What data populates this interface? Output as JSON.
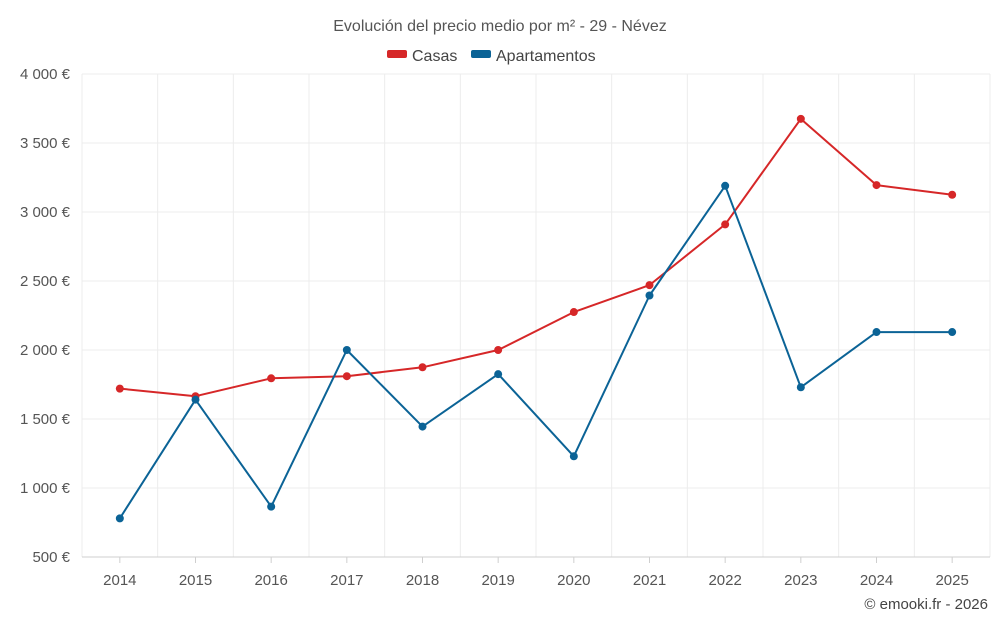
{
  "chart_data": {
    "type": "line",
    "title": "Evolución del precio medio por m² - 29 - Névez",
    "categories": [
      "2014",
      "2015",
      "2016",
      "2017",
      "2018",
      "2019",
      "2020",
      "2021",
      "2022",
      "2023",
      "2024",
      "2025"
    ],
    "series": [
      {
        "name": "Casas",
        "color": "#d62728",
        "values": [
          1720,
          1665,
          1795,
          1810,
          1875,
          2000,
          2275,
          2470,
          2910,
          3675,
          3195,
          3125
        ]
      },
      {
        "name": "Apartamentos",
        "color": "#0b6396",
        "values": [
          780,
          1640,
          865,
          2000,
          1445,
          1825,
          1230,
          2395,
          3190,
          1730,
          2130,
          2130
        ]
      }
    ],
    "ylim": [
      500,
      4000
    ],
    "yticks": [
      500,
      1000,
      1500,
      2000,
      2500,
      3000,
      3500,
      4000
    ],
    "ytick_labels": [
      "500 €",
      "1 000 €",
      "1 500 €",
      "2 000 €",
      "2 500 €",
      "3 000 €",
      "3 500 €",
      "4 000 €"
    ],
    "grid": true,
    "legend": "top-center",
    "credit": "© emooki.fr - 2026"
  }
}
